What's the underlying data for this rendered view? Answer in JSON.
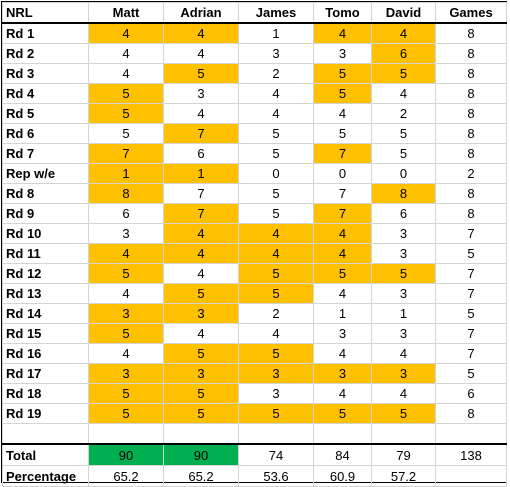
{
  "header": {
    "corner": "NRL",
    "players": [
      "Matt",
      "Adrian",
      "James",
      "Tomo",
      "David"
    ],
    "games": "Games"
  },
  "colors": {
    "highlight": "#ffc000",
    "leader": "#00b050"
  },
  "rows": [
    {
      "label": "Rd 1",
      "scores": [
        "4",
        "4",
        "1",
        "4",
        "4"
      ],
      "hl": [
        1,
        1,
        0,
        1,
        1
      ],
      "games": "8"
    },
    {
      "label": "Rd 2",
      "scores": [
        "4",
        "4",
        "3",
        "3",
        "6"
      ],
      "hl": [
        0,
        0,
        0,
        0,
        1
      ],
      "games": "8"
    },
    {
      "label": "Rd 3",
      "scores": [
        "4",
        "5",
        "2",
        "5",
        "5"
      ],
      "hl": [
        0,
        1,
        0,
        1,
        1
      ],
      "games": "8"
    },
    {
      "label": "Rd 4",
      "scores": [
        "5",
        "3",
        "4",
        "5",
        "4"
      ],
      "hl": [
        1,
        0,
        0,
        1,
        0
      ],
      "games": "8"
    },
    {
      "label": "Rd 5",
      "scores": [
        "5",
        "4",
        "4",
        "4",
        "2"
      ],
      "hl": [
        1,
        0,
        0,
        0,
        0
      ],
      "games": "8"
    },
    {
      "label": "Rd 6",
      "scores": [
        "5",
        "7",
        "5",
        "5",
        "5"
      ],
      "hl": [
        0,
        1,
        0,
        0,
        0
      ],
      "games": "8"
    },
    {
      "label": "Rd 7",
      "scores": [
        "7",
        "6",
        "5",
        "7",
        "5"
      ],
      "hl": [
        1,
        0,
        0,
        1,
        0
      ],
      "games": "8"
    },
    {
      "label": "Rep w/e",
      "scores": [
        "1",
        "1",
        "0",
        "0",
        "0"
      ],
      "hl": [
        1,
        1,
        0,
        0,
        0
      ],
      "games": "2"
    },
    {
      "label": "Rd 8",
      "scores": [
        "8",
        "7",
        "5",
        "7",
        "8"
      ],
      "hl": [
        1,
        0,
        0,
        0,
        1
      ],
      "games": "8"
    },
    {
      "label": "Rd 9",
      "scores": [
        "6",
        "7",
        "5",
        "7",
        "6"
      ],
      "hl": [
        0,
        1,
        0,
        1,
        0
      ],
      "games": "8"
    },
    {
      "label": "Rd 10",
      "scores": [
        "3",
        "4",
        "4",
        "4",
        "3"
      ],
      "hl": [
        0,
        1,
        1,
        1,
        0
      ],
      "games": "7"
    },
    {
      "label": "Rd 11",
      "scores": [
        "4",
        "4",
        "4",
        "4",
        "3"
      ],
      "hl": [
        1,
        1,
        1,
        1,
        0
      ],
      "games": "5"
    },
    {
      "label": "Rd 12",
      "scores": [
        "5",
        "4",
        "5",
        "5",
        "5"
      ],
      "hl": [
        1,
        0,
        1,
        1,
        1
      ],
      "games": "7"
    },
    {
      "label": "Rd 13",
      "scores": [
        "4",
        "5",
        "5",
        "4",
        "3"
      ],
      "hl": [
        0,
        1,
        1,
        0,
        0
      ],
      "games": "7"
    },
    {
      "label": "Rd 14",
      "scores": [
        "3",
        "3",
        "2",
        "1",
        "1"
      ],
      "hl": [
        1,
        1,
        0,
        0,
        0
      ],
      "games": "5"
    },
    {
      "label": "Rd 15",
      "scores": [
        "5",
        "4",
        "4",
        "3",
        "3"
      ],
      "hl": [
        1,
        0,
        0,
        0,
        0
      ],
      "games": "7"
    },
    {
      "label": "Rd 16",
      "scores": [
        "4",
        "5",
        "5",
        "4",
        "4"
      ],
      "hl": [
        0,
        1,
        1,
        0,
        0
      ],
      "games": "7"
    },
    {
      "label": "Rd 17",
      "scores": [
        "3",
        "3",
        "3",
        "3",
        "3"
      ],
      "hl": [
        1,
        1,
        1,
        1,
        1
      ],
      "games": "5"
    },
    {
      "label": "Rd 18",
      "scores": [
        "5",
        "5",
        "3",
        "4",
        "4"
      ],
      "hl": [
        1,
        1,
        0,
        0,
        0
      ],
      "games": "6"
    },
    {
      "label": "Rd 19",
      "scores": [
        "5",
        "5",
        "5",
        "5",
        "5"
      ],
      "hl": [
        1,
        1,
        1,
        1,
        1
      ],
      "games": "8"
    }
  ],
  "total": {
    "label": "Total",
    "values": [
      "90",
      "90",
      "74",
      "84",
      "79"
    ],
    "leader": [
      1,
      1,
      0,
      0,
      0
    ],
    "games": "138"
  },
  "percentage": {
    "label": "Percentage",
    "values": [
      "65.2",
      "65.2",
      "53.6",
      "60.9",
      "57.2"
    ],
    "games": ""
  }
}
